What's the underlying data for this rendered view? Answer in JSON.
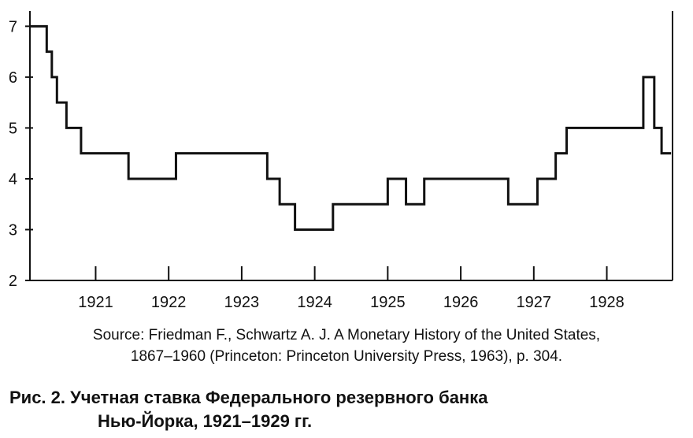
{
  "chart_data": {
    "type": "line",
    "step": true,
    "title": "",
    "xlabel": "",
    "ylabel": "",
    "xlim": [
      1920.1,
      1928.9
    ],
    "ylim": [
      2,
      7.3
    ],
    "grid": false,
    "x_ticks": [
      1921,
      1922,
      1923,
      1924,
      1925,
      1926,
      1927,
      1928
    ],
    "x_tick_labels": [
      "1921",
      "1922",
      "1923",
      "1924",
      "1925",
      "1926",
      "1927",
      "1928"
    ],
    "y_ticks": [
      2,
      3,
      4,
      5,
      6,
      7
    ],
    "y_tick_labels": [
      "2",
      "3",
      "4",
      "5",
      "6",
      "7"
    ],
    "series": [
      {
        "color": "#111111",
        "points": [
          [
            1920.1,
            7
          ],
          [
            1920.33,
            6.5
          ],
          [
            1920.4,
            6
          ],
          [
            1920.47,
            5.5
          ],
          [
            1920.6,
            5
          ],
          [
            1920.8,
            4.5
          ],
          [
            1921.45,
            4
          ],
          [
            1922.1,
            4.5
          ],
          [
            1923.35,
            4
          ],
          [
            1923.52,
            3.5
          ],
          [
            1923.73,
            3
          ],
          [
            1924.25,
            3.5
          ],
          [
            1925.0,
            4
          ],
          [
            1925.25,
            3.5
          ],
          [
            1925.5,
            4
          ],
          [
            1926.65,
            3.5
          ],
          [
            1927.05,
            4
          ],
          [
            1927.3,
            4.5
          ],
          [
            1927.45,
            5
          ],
          [
            1928.5,
            6
          ],
          [
            1928.65,
            5
          ],
          [
            1928.75,
            4.5
          ],
          [
            1928.88,
            4.5
          ]
        ]
      }
    ]
  },
  "source_note": {
    "line1": "Source: Friedman F., Schwartz A. J. A Monetary History of the United States,",
    "line2": "1867–1960 (Princeton: Princeton University Press, 1963), p. 304."
  },
  "figure_caption": {
    "line1": "Рис. 2. Учетная ставка Федерального резервного банка",
    "line2": "Нью-Йорка, 1921–1929 гг."
  }
}
